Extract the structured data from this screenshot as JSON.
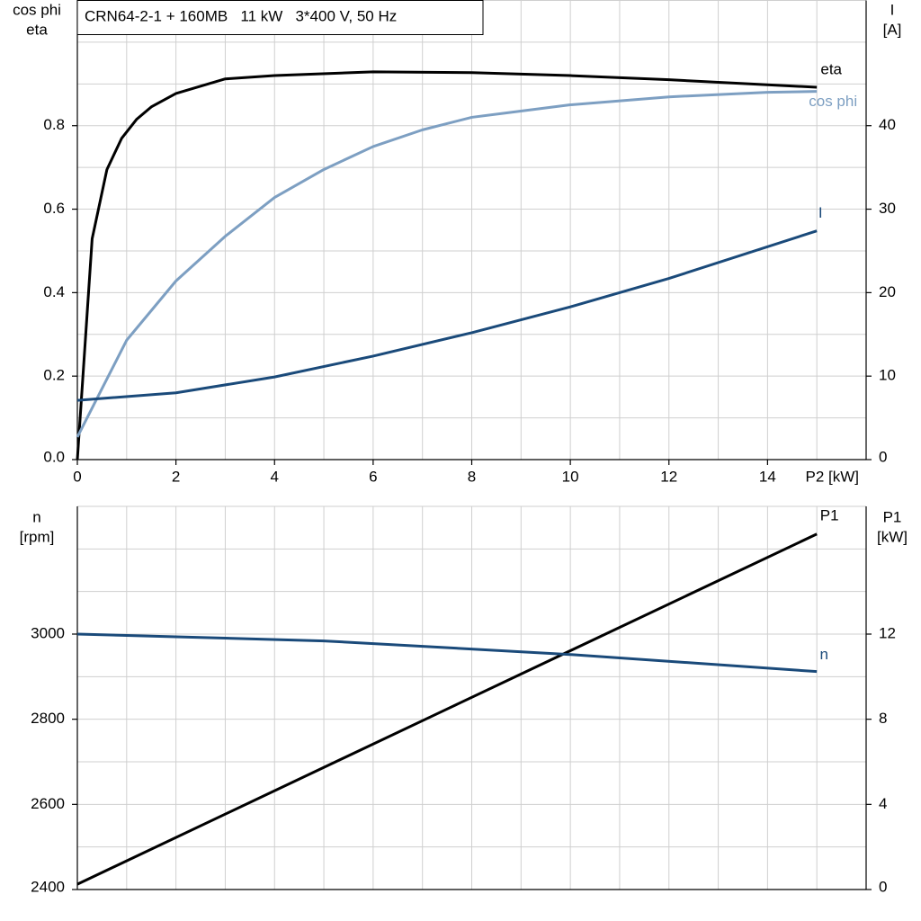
{
  "chart_data": [
    {
      "type": "line",
      "title": "CRN64-2-1 + 160MB   11 kW   3*400 V, 50 Hz",
      "y_label": [
        "cos phi",
        "eta"
      ],
      "y2_label": [
        "I",
        "[A]"
      ],
      "x_label": "P2 [kW]",
      "xlim": [
        0,
        16
      ],
      "xticks": [
        0,
        2,
        4,
        6,
        8,
        10,
        12,
        14
      ],
      "xgrid": [
        0,
        1,
        2,
        3,
        4,
        5,
        6,
        7,
        8,
        9,
        10,
        11,
        12,
        13,
        14,
        15,
        16
      ],
      "ylim": [
        0,
        1.1
      ],
      "yticks": [
        {
          "value": 0,
          "label": "0.0"
        },
        0.2,
        0.4,
        0.6,
        0.8
      ],
      "ygrid": [
        0,
        0.1,
        0.2,
        0.3,
        0.4,
        0.5,
        0.6,
        0.7,
        0.8,
        0.9,
        1.0,
        1.1
      ],
      "y2lim": [
        0,
        55
      ],
      "y2ticks": [
        0,
        10,
        20,
        30,
        40
      ],
      "grid": true,
      "series": [
        {
          "name": "eta",
          "color": "#000000",
          "x": [
            0,
            0.3,
            0.6,
            0.9,
            1.2,
            1.5,
            2,
            3,
            4,
            6,
            8,
            10,
            12,
            15
          ],
          "values": [
            0,
            0.529,
            0.695,
            0.77,
            0.815,
            0.845,
            0.877,
            0.912,
            0.92,
            0.929,
            0.927,
            0.92,
            0.91,
            0.892
          ]
        },
        {
          "name": "cos phi",
          "color": "#7d9fc2",
          "x": [
            0,
            0.5,
            1,
            2,
            3,
            4,
            5,
            6,
            7,
            8,
            10,
            12,
            14,
            15
          ],
          "values": [
            0.054,
            0.17,
            0.286,
            0.428,
            0.535,
            0.628,
            0.695,
            0.75,
            0.79,
            0.82,
            0.85,
            0.869,
            0.88,
            0.882
          ]
        },
        {
          "name": "I",
          "color": "#1a4a7a",
          "axis": "y2",
          "x": [
            0,
            2,
            4,
            6,
            8,
            10,
            12,
            15
          ],
          "values": [
            7.1,
            8.0,
            9.9,
            12.4,
            15.2,
            18.3,
            21.7,
            27.4
          ]
        }
      ]
    },
    {
      "type": "line",
      "y_label": [
        "n",
        "[rpm]"
      ],
      "y2_label": [
        "P1",
        "[kW]"
      ],
      "xlim": [
        0,
        16
      ],
      "xgrid": [
        0,
        1,
        2,
        3,
        4,
        5,
        6,
        7,
        8,
        9,
        10,
        11,
        12,
        13,
        14,
        15,
        16
      ],
      "ylim": [
        2400,
        3300
      ],
      "yticks": [
        2400,
        2600,
        2800,
        3000
      ],
      "ygrid": [
        2400,
        2500,
        2600,
        2700,
        2800,
        2900,
        3000,
        3100,
        3200,
        3300
      ],
      "y2lim": [
        0,
        18
      ],
      "y2ticks": [
        0,
        4,
        8,
        12
      ],
      "grid": true,
      "series": [
        {
          "name": "P1",
          "color": "#000000",
          "axis": "y2",
          "x": [
            0,
            7.5,
            15
          ],
          "values": [
            0.25,
            8.48,
            16.7
          ]
        },
        {
          "name": "n",
          "color": "#1a4a7a",
          "x": [
            0,
            5,
            10,
            15
          ],
          "values": [
            3000,
            2984,
            2952,
            2912
          ]
        }
      ]
    }
  ]
}
